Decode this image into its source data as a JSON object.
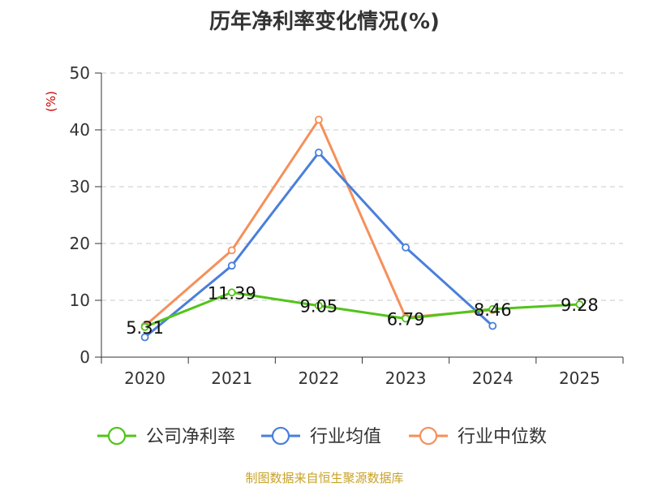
{
  "chart_data": {
    "type": "line",
    "title": "历年净利率变化情况(%)",
    "ylabel": "(%)",
    "xlabel": "",
    "categories": [
      "2020",
      "2021",
      "2022",
      "2023",
      "2024",
      "2025"
    ],
    "ylim": [
      0,
      50
    ],
    "yticks": [
      0,
      10,
      20,
      30,
      40,
      50
    ],
    "grid": true,
    "legend_position": "bottom",
    "series": [
      {
        "name": "公司净利率",
        "color": "#52c41a",
        "values": [
          5.31,
          11.39,
          9.05,
          6.79,
          8.46,
          9.28
        ],
        "labels": [
          "5.31",
          "11.39",
          "9.05",
          "6.79",
          "8.46",
          "9.28"
        ]
      },
      {
        "name": "行业均值",
        "color": "#4a7fdb",
        "values": [
          3.5,
          16.1,
          36.0,
          19.3,
          5.5,
          null
        ]
      },
      {
        "name": "行业中位数",
        "color": "#f5905a",
        "values": [
          5.5,
          18.8,
          41.8,
          7.0,
          8.3,
          null
        ]
      }
    ]
  },
  "footer": {
    "source": "制图数据来自恒生聚源数据库"
  }
}
